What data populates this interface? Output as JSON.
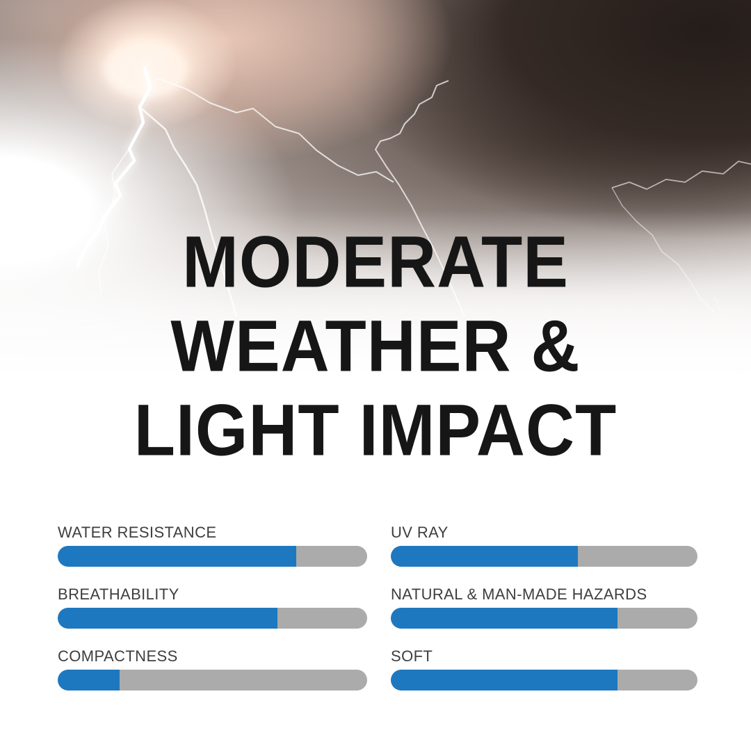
{
  "title": {
    "line1": "MODERATE",
    "line2": "WEATHER &",
    "line3": "LIGHT IMPACT"
  },
  "chart_data": {
    "type": "bar",
    "title": "MODERATE WEATHER & LIGHT IMPACT",
    "categories": [
      "WATER RESISTANCE",
      "UV RAY",
      "BREATHABILITY",
      "NATURAL & MAN-MADE HAZARDS",
      "COMPACTNESS",
      "SOFT"
    ],
    "values": [
      77,
      61,
      71,
      74,
      20,
      74
    ],
    "value_unit": "percent of full bar",
    "ylim": [
      0,
      100
    ],
    "layout": "two-column grid, row-major order",
    "bar_fill_color": "#1e78bf",
    "bar_track_color": "#ababab"
  },
  "background": {
    "description": "storm clouds with lightning bolts fading to white",
    "dark_cloud_color": "#241d1a",
    "warm_cloud_color": "#d9b8ac",
    "title_color": "#161616",
    "label_color": "#3e3e3e"
  }
}
